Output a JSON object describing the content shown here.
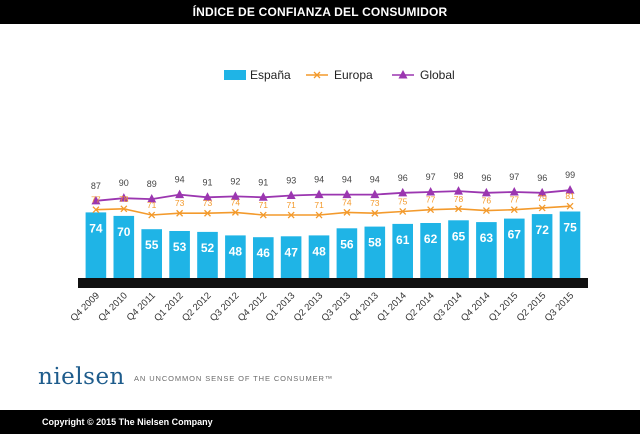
{
  "page": {
    "title": "ÍNDICE DE CONFIANZA DEL CONSUMIDOR",
    "copyright": "Copyright © 2015 The Nielsen Company",
    "logo": "nielsen",
    "tagline": "AN UNCOMMON SENSE OF THE CONSUMER™"
  },
  "colors": {
    "espana": "#1fb4e6",
    "europa": "#f39a2c",
    "global": "#9b36b0",
    "baseline": "#111111"
  },
  "chart_data": {
    "type": "bar",
    "title": "ÍNDICE DE CONFIANZA DEL CONSUMIDOR",
    "xlabel": "",
    "ylabel": "",
    "ylim": [
      0,
      110
    ],
    "grid": false,
    "legend": "top-center",
    "categories": [
      "Q4 2009",
      "Q4 2010",
      "Q4 2011",
      "Q1 2012",
      "Q2 2012",
      "Q3 2012",
      "Q4 2012",
      "Q1 2013",
      "Q2 2013",
      "Q3 2013",
      "Q4 2013",
      "Q1 2014",
      "Q2 2014",
      "Q3 2014",
      "Q4 2014",
      "Q1 2015",
      "Q2 2015",
      "Q3 2015"
    ],
    "series": [
      {
        "name": "España",
        "type": "bar",
        "values": [
          74,
          70,
          55,
          53,
          52,
          48,
          46,
          47,
          48,
          56,
          58,
          61,
          62,
          65,
          63,
          67,
          72,
          75
        ]
      },
      {
        "name": "Europa",
        "type": "line",
        "values": [
          77,
          78,
          71,
          73,
          73,
          74,
          71,
          71,
          71,
          74,
          73,
          75,
          77,
          78,
          76,
          77,
          79,
          81
        ]
      },
      {
        "name": "Global",
        "type": "line",
        "values": [
          87,
          90,
          89,
          94,
          91,
          92,
          91,
          93,
          94,
          94,
          94,
          96,
          97,
          98,
          96,
          97,
          96,
          99
        ]
      }
    ]
  }
}
